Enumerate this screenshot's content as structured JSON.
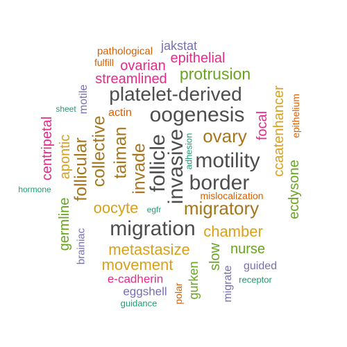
{
  "colors": {
    "dark": "#4d4d4d",
    "orange": "#d9a01a",
    "brown": "#a6761d",
    "purple": "#7570b3",
    "magenta": "#e7298a",
    "green": "#66a61e",
    "teal": "#1b9e77",
    "rust": "#d95f02"
  },
  "words": [
    {
      "text": "jakstat",
      "color": "purple"
    },
    {
      "text": "pathological",
      "color": "rust"
    },
    {
      "text": "epithelial",
      "color": "magenta"
    },
    {
      "text": "fulfill",
      "color": "rust"
    },
    {
      "text": "ovarian",
      "color": "magenta"
    },
    {
      "text": "protrusion",
      "color": "green"
    },
    {
      "text": "streamlined",
      "color": "magenta"
    },
    {
      "text": "motile",
      "color": "purple"
    },
    {
      "text": "platelet-derived",
      "color": "dark"
    },
    {
      "text": "ccaatenhancer",
      "color": "orange"
    },
    {
      "text": "epithelium",
      "color": "rust"
    },
    {
      "text": "sheet",
      "color": "teal"
    },
    {
      "text": "actin",
      "color": "rust"
    },
    {
      "text": "oogenesis",
      "color": "dark"
    },
    {
      "text": "focal",
      "color": "magenta"
    },
    {
      "text": "taiman",
      "color": "brown"
    },
    {
      "text": "collective",
      "color": "brown"
    },
    {
      "text": "follicular",
      "color": "brown"
    },
    {
      "text": "apontic",
      "color": "orange"
    },
    {
      "text": "centripetal",
      "color": "magenta"
    },
    {
      "text": "invade",
      "color": "brown"
    },
    {
      "text": "follicle",
      "color": "dark"
    },
    {
      "text": "invasive",
      "color": "dark"
    },
    {
      "text": "adhesion",
      "color": "teal"
    },
    {
      "text": "ovary",
      "color": "brown"
    },
    {
      "text": "motility",
      "color": "dark"
    },
    {
      "text": "ecdysone",
      "color": "green"
    },
    {
      "text": "border",
      "color": "dark"
    },
    {
      "text": "hormone",
      "color": "teal"
    },
    {
      "text": "mislocalization",
      "color": "rust"
    },
    {
      "text": "germline",
      "color": "green"
    },
    {
      "text": "oocyte",
      "color": "orange"
    },
    {
      "text": "egfr",
      "color": "teal"
    },
    {
      "text": "migratory",
      "color": "brown"
    },
    {
      "text": "brainiac",
      "color": "purple"
    },
    {
      "text": "migration",
      "color": "dark"
    },
    {
      "text": "chamber",
      "color": "orange"
    },
    {
      "text": "metastasize",
      "color": "orange"
    },
    {
      "text": "slow",
      "color": "green"
    },
    {
      "text": "nurse",
      "color": "green"
    },
    {
      "text": "movement",
      "color": "orange"
    },
    {
      "text": "gurken",
      "color": "green"
    },
    {
      "text": "migrate",
      "color": "purple"
    },
    {
      "text": "guided",
      "color": "purple"
    },
    {
      "text": "e-cadherin",
      "color": "magenta"
    },
    {
      "text": "receptor",
      "color": "teal"
    },
    {
      "text": "eggshell",
      "color": "purple"
    },
    {
      "text": "polar",
      "color": "rust"
    },
    {
      "text": "guidance",
      "color": "teal"
    }
  ]
}
